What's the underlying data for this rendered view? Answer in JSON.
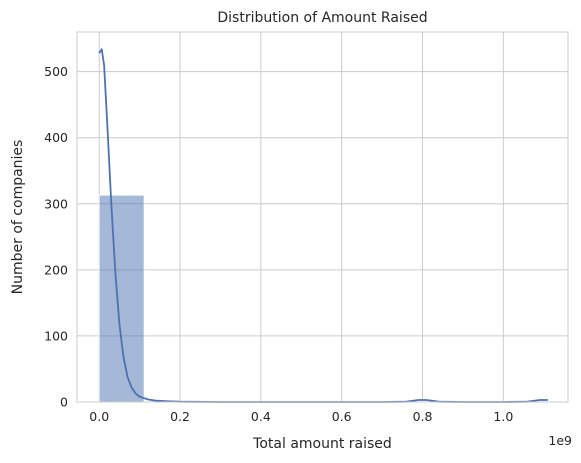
{
  "chart_data": {
    "type": "bar",
    "title": "Distribution of Amount Raised",
    "xlabel": "Total amount raised",
    "ylabel": "Number of companies",
    "x_offset_label": "1e9",
    "xlim": [
      -0.055,
      1.16
    ],
    "ylim": [
      0,
      560
    ],
    "xticks": [
      0.0,
      0.2,
      0.4,
      0.6,
      0.8,
      1.0
    ],
    "xtick_labels": [
      "0.0",
      "0.2",
      "0.4",
      "0.6",
      "0.8",
      "1.0"
    ],
    "yticks": [
      0,
      100,
      200,
      300,
      400,
      500
    ],
    "ytick_labels": [
      "0",
      "100",
      "200",
      "300",
      "400",
      "500"
    ],
    "grid": true,
    "bins": [
      {
        "x0": 0.0,
        "x1": 0.111,
        "count": 313
      },
      {
        "x0": 0.111,
        "x1": 0.222,
        "count": 0
      },
      {
        "x0": 0.222,
        "x1": 0.333,
        "count": 0
      },
      {
        "x0": 0.333,
        "x1": 0.444,
        "count": 0
      },
      {
        "x0": 0.444,
        "x1": 0.555,
        "count": 0
      },
      {
        "x0": 0.555,
        "x1": 0.666,
        "count": 0
      },
      {
        "x0": 0.666,
        "x1": 0.777,
        "count": 0
      },
      {
        "x0": 0.777,
        "x1": 0.888,
        "count": 1
      },
      {
        "x0": 0.888,
        "x1": 0.999,
        "count": 0
      },
      {
        "x0": 0.999,
        "x1": 1.11,
        "count": 1
      }
    ],
    "kde": {
      "x": [
        0.0,
        0.006,
        0.012,
        0.02,
        0.03,
        0.04,
        0.05,
        0.06,
        0.07,
        0.08,
        0.09,
        0.1,
        0.12,
        0.14,
        0.17,
        0.2,
        0.3,
        0.5,
        0.7,
        0.76,
        0.79,
        0.81,
        0.84,
        0.9,
        1.0,
        1.06,
        1.09,
        1.11
      ],
      "y": [
        528,
        534,
        510,
        420,
        300,
        195,
        118,
        68,
        38,
        22,
        13,
        8,
        4,
        2,
        1,
        0.5,
        0,
        0,
        0,
        0.5,
        3,
        3,
        0.5,
        0,
        0,
        0.5,
        3,
        3
      ]
    },
    "colors": {
      "bar_fill": "#4c72b0",
      "bar_opacity": 0.5,
      "line": "#4c72b0",
      "grid": "#cccccc",
      "spine": "#cccccc"
    }
  }
}
